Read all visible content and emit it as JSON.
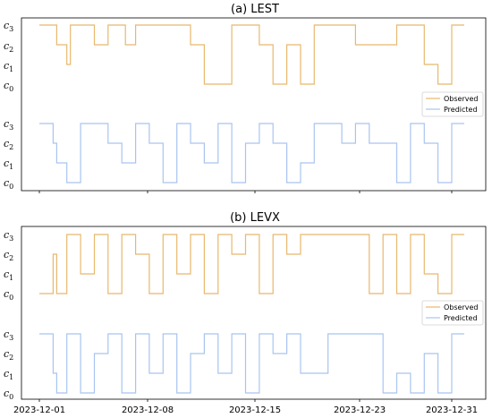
{
  "colors": {
    "observed": "#e8b86d",
    "predicted": "#a9c4f0"
  },
  "chart_data": [
    {
      "type": "line",
      "title": "(a) LEST",
      "y_levels": [
        "c0",
        "c1",
        "c2",
        "c3"
      ],
      "x_ticks": [
        "2023-12-01",
        "2023-12-08",
        "2023-12-15",
        "2023-12-23",
        "2023-12-31"
      ],
      "legend_position": "center-right",
      "series": [
        {
          "name": "Observed",
          "x": [
            "2023-12-01",
            "2023-12-02",
            "2023-12-02",
            "2023-12-03",
            "2023-12-03",
            "2023-12-05",
            "2023-12-06",
            "2023-12-07",
            "2023-12-07",
            "2023-12-08",
            "2023-12-09",
            "2023-12-11",
            "2023-12-12",
            "2023-12-13",
            "2023-12-15",
            "2023-12-16",
            "2023-12-17",
            "2023-12-18",
            "2023-12-19",
            "2023-12-20",
            "2023-12-21",
            "2023-12-23",
            "2023-12-24",
            "2023-12-27",
            "2023-12-28",
            "2023-12-29",
            "2023-12-30",
            "2023-12-31"
          ],
          "values": [
            3,
            3,
            2,
            1,
            3,
            2,
            3,
            3,
            2,
            3,
            3,
            3,
            2,
            0,
            3,
            3,
            2,
            0,
            2,
            0,
            3,
            3,
            2,
            3,
            3,
            1,
            0,
            3
          ]
        },
        {
          "name": "Predicted",
          "x": [
            "2023-12-01",
            "2023-12-02",
            "2023-12-02",
            "2023-12-03",
            "2023-12-04",
            "2023-12-05",
            "2023-12-06",
            "2023-12-07",
            "2023-12-08",
            "2023-12-09",
            "2023-12-10",
            "2023-12-11",
            "2023-12-12",
            "2023-12-13",
            "2023-12-14",
            "2023-12-15",
            "2023-12-16",
            "2023-12-17",
            "2023-12-18",
            "2023-12-19",
            "2023-12-20",
            "2023-12-21",
            "2023-12-23",
            "2023-12-24",
            "2023-12-25",
            "2023-12-27",
            "2023-12-28",
            "2023-12-29",
            "2023-12-30",
            "2023-12-31"
          ],
          "values": [
            3,
            2,
            1,
            0,
            3,
            3,
            2,
            1,
            3,
            2,
            0,
            3,
            2,
            1,
            3,
            0,
            2,
            3,
            2,
            0,
            1,
            3,
            2,
            3,
            2,
            0,
            3,
            2,
            0,
            3
          ]
        }
      ]
    },
    {
      "type": "line",
      "title": "(b) LEVX",
      "y_levels": [
        "c0",
        "c1",
        "c2",
        "c3"
      ],
      "x_ticks": [
        "2023-12-01",
        "2023-12-08",
        "2023-12-15",
        "2023-12-23",
        "2023-12-31"
      ],
      "legend_position": "center-right",
      "series": [
        {
          "name": "Observed",
          "x": [
            "2023-12-01",
            "2023-12-02",
            "2023-12-02",
            "2023-12-03",
            "2023-12-04",
            "2023-12-05",
            "2023-12-06",
            "2023-12-07",
            "2023-12-08",
            "2023-12-09",
            "2023-12-10",
            "2023-12-11",
            "2023-12-12",
            "2023-12-13",
            "2023-12-14",
            "2023-12-15",
            "2023-12-16",
            "2023-12-17",
            "2023-12-18",
            "2023-12-19",
            "2023-12-20",
            "2023-12-22",
            "2023-12-25",
            "2023-12-26",
            "2023-12-27",
            "2023-12-28",
            "2023-12-29",
            "2023-12-30",
            "2023-12-31"
          ],
          "values": [
            0,
            2,
            0,
            3,
            1,
            3,
            0,
            3,
            2,
            0,
            3,
            1,
            3,
            0,
            3,
            2,
            3,
            0,
            3,
            2,
            3,
            3,
            0,
            3,
            0,
            3,
            1,
            0,
            3
          ]
        },
        {
          "name": "Predicted",
          "x": [
            "2023-12-01",
            "2023-12-02",
            "2023-12-02",
            "2023-12-03",
            "2023-12-04",
            "2023-12-05",
            "2023-12-06",
            "2023-12-07",
            "2023-12-08",
            "2023-12-09",
            "2023-12-10",
            "2023-12-11",
            "2023-12-12",
            "2023-12-13",
            "2023-12-14",
            "2023-12-15",
            "2023-12-16",
            "2023-12-17",
            "2023-12-18",
            "2023-12-19",
            "2023-12-20",
            "2023-12-22",
            "2023-12-25",
            "2023-12-26",
            "2023-12-27",
            "2023-12-28",
            "2023-12-29",
            "2023-12-30",
            "2023-12-31"
          ],
          "values": [
            3,
            1,
            0,
            3,
            0,
            2,
            3,
            0,
            3,
            1,
            3,
            0,
            2,
            3,
            1,
            3,
            0,
            3,
            2,
            3,
            1,
            3,
            3,
            0,
            1,
            0,
            2,
            0,
            3
          ]
        }
      ]
    }
  ]
}
